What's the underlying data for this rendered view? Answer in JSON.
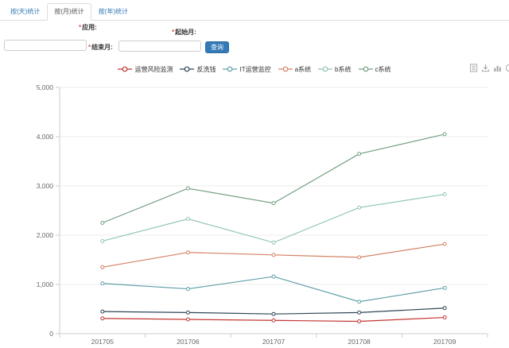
{
  "tabs": {
    "day": "按(天)统计",
    "month": "按(月)统计",
    "year": "按(年)统计"
  },
  "form": {
    "required_mark": "*",
    "app_label": "应用:",
    "start_month_label": "起始月:",
    "end_month_label": "结束月:",
    "start_month_value": "",
    "end_month_value": "",
    "query_button": "查询"
  },
  "toolbox": {
    "icons": [
      "data-view-icon",
      "download-icon",
      "bar-chart-icon",
      "pie-chart-icon"
    ]
  },
  "colors": {
    "accent": "#337ab7",
    "required_mark": "#d9534f",
    "tab_active_text": "#555555",
    "axis_line": "#cccccc",
    "grid_line": "#eeeeee",
    "axis_label": "#666666"
  },
  "chart_data": {
    "type": "line",
    "title": "",
    "xlabel": "",
    "ylabel": "",
    "categories": [
      "201705",
      "201706",
      "201707",
      "201708",
      "201709"
    ],
    "series": [
      {
        "name": "运营风险监测",
        "color": "#c23531",
        "values": [
          310,
          290,
          270,
          250,
          330
        ]
      },
      {
        "name": "反洗钱",
        "color": "#2f4554",
        "values": [
          450,
          430,
          400,
          430,
          520
        ]
      },
      {
        "name": "IT运营监控",
        "color": "#61a0a8",
        "values": [
          1020,
          910,
          1160,
          650,
          930
        ]
      },
      {
        "name": "a系统",
        "color": "#d48265",
        "values": [
          1350,
          1650,
          1600,
          1550,
          1820
        ]
      },
      {
        "name": "b系统",
        "color": "#91c7ae",
        "values": [
          1880,
          2330,
          1850,
          2560,
          2830
        ]
      },
      {
        "name": "c系统",
        "color": "#749f83",
        "values": [
          2250,
          2950,
          2650,
          3650,
          4050
        ]
      }
    ],
    "ylim": [
      0,
      5000
    ],
    "y_tick_labels": [
      "0",
      "1,000",
      "2,000",
      "3,000",
      "4,000",
      "5,000"
    ],
    "grid": true,
    "legend_position": "top-center"
  }
}
